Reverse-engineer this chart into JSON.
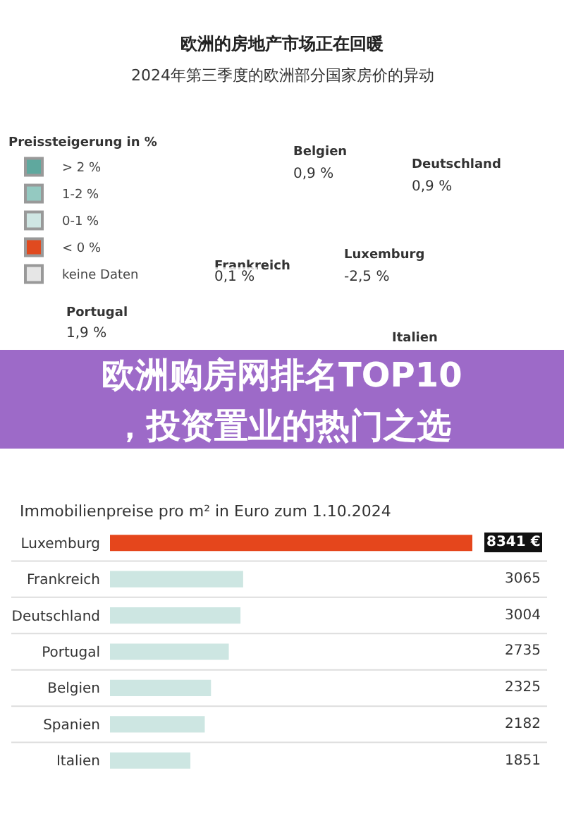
{
  "chart_data": [
    {
      "type": "other",
      "title": "欧洲的房地产市场正在回暖",
      "subtitle": "2024年第三季度的欧洲部分国家房价的异动",
      "legend_title": "Preissteigerung in %",
      "categories": [
        "> 2 %",
        "1-2 %",
        "0-1 %",
        "< 0 %",
        "keine Daten"
      ],
      "colors": [
        "#5fa89e",
        "#94c9c1",
        "#cfe6e3",
        "#e04a1f",
        "#e6e6e6"
      ],
      "annotations": [
        "Belgien",
        "0,9 %",
        "Deutschland",
        "0,9 %",
        "Frankreich",
        "0,1 %",
        "Luxemburg",
        "-2,5 %",
        "Portugal",
        "1,9 %",
        "Italien",
        "欧洲购房网排名TOP10",
        "，投资置业的热门之选"
      ]
    },
    {
      "type": "bar",
      "orientation": "horizontal",
      "title": "Immobilienpreise pro m² in Euro zum 1.10.2024",
      "categories": [
        "Luxemburg",
        "Frankreich",
        "Deutschland",
        "Portugal",
        "Belgien",
        "Spanien",
        "Italien"
      ],
      "values": [
        8341,
        3065,
        3004,
        2735,
        2325,
        2182,
        1851
      ],
      "colors": [
        "#e5461c",
        "#cde6e2",
        "#cde6e2",
        "#cde6e2",
        "#cde6e2",
        "#cde6e2",
        "#cde6e2"
      ],
      "value_labels": [
        "8341 €",
        "3065",
        "3004",
        "2735",
        "2325",
        "2182",
        "1851"
      ]
    }
  ]
}
